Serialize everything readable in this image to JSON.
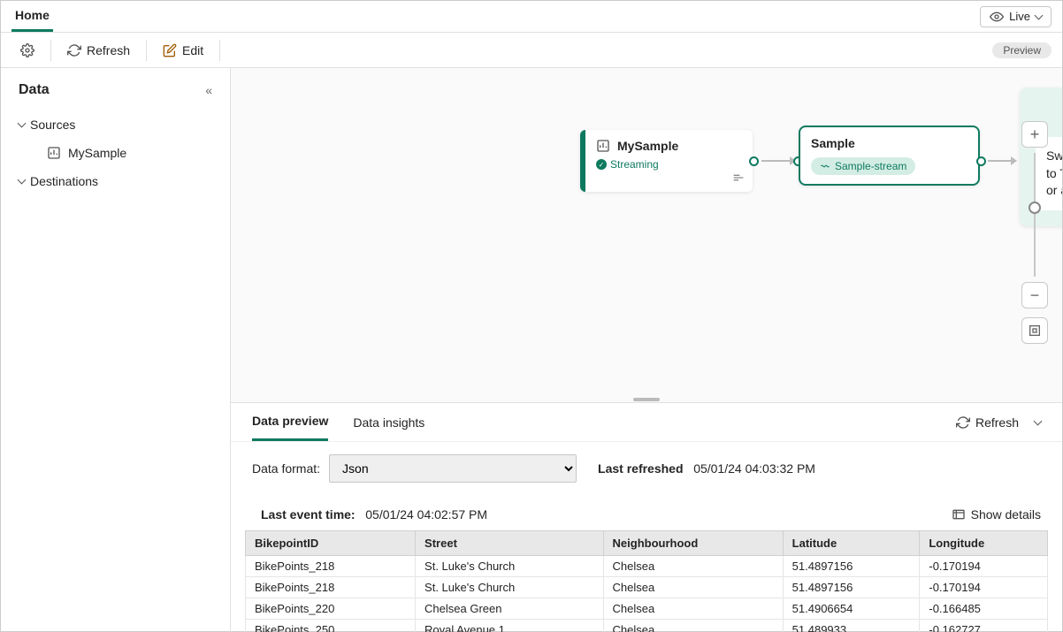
{
  "tabs": {
    "home": "Home"
  },
  "liveButton": "Live",
  "toolbar": {
    "refresh": "Refresh",
    "edit": "Edit",
    "previewBadge": "Preview"
  },
  "sidebar": {
    "heading": "Data",
    "groups": {
      "sources": "Sources",
      "destinations": "Destinations"
    },
    "sourceItems": [
      {
        "label": "MySample"
      }
    ]
  },
  "canvas": {
    "sourceNode": {
      "title": "MySample",
      "status": "Streaming"
    },
    "streamNode": {
      "title": "Sample",
      "chip": "Sample-stream"
    },
    "destNode": {
      "message": "Switch to edit mode to Transform event or add destination"
    }
  },
  "bottomPanel": {
    "tabs": {
      "preview": "Data preview",
      "insights": "Data insights"
    },
    "refresh": "Refresh",
    "dataFormatLabel": "Data format:",
    "dataFormatValue": "Json",
    "lastRefreshedLabel": "Last refreshed",
    "lastRefreshedValue": "05/01/24 04:03:32 PM",
    "lastEventLabel": "Last event time:",
    "lastEventValue": "05/01/24 04:02:57 PM",
    "showDetails": "Show details",
    "columns": [
      "BikepointID",
      "Street",
      "Neighbourhood",
      "Latitude",
      "Longitude"
    ],
    "rows": [
      [
        "BikePoints_218",
        "St. Luke's Church",
        "Chelsea",
        "51.4897156",
        "-0.170194"
      ],
      [
        "BikePoints_218",
        "St. Luke's Church",
        "Chelsea",
        "51.4897156",
        "-0.170194"
      ],
      [
        "BikePoints_220",
        "Chelsea Green",
        "Chelsea",
        "51.4906654",
        "-0.166485"
      ],
      [
        "BikePoints_250",
        "Royal Avenue 1",
        "Chelsea",
        "51.489933",
        "-0.162727"
      ]
    ]
  },
  "colors": {
    "brand": "#0d7a5f"
  }
}
